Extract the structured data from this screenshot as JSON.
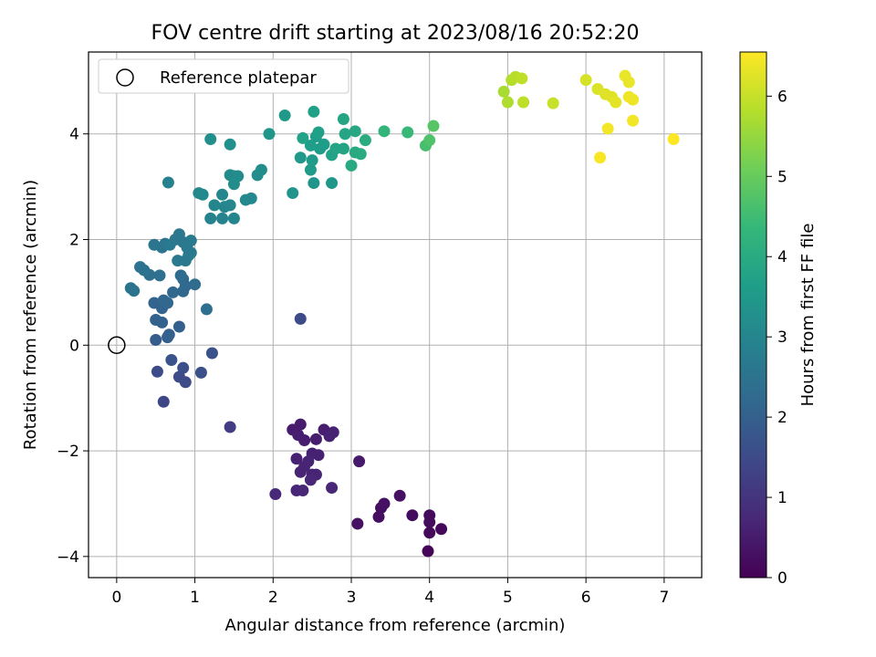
{
  "chart_data": {
    "type": "scatter",
    "title": "FOV centre drift starting at 2023/08/16 20:52:20",
    "xlabel": "Angular distance from reference (arcmin)",
    "ylabel": "Rotation from reference (arcmin)",
    "xlim": [
      -0.36,
      7.48
    ],
    "ylim": [
      -4.4,
      5.55
    ],
    "xticks": [
      0,
      1,
      2,
      3,
      4,
      5,
      6,
      7
    ],
    "yticks": [
      -4,
      -2,
      0,
      2,
      4
    ],
    "grid": true,
    "legend": {
      "placement": "top-left",
      "entries": [
        "Reference platepar"
      ]
    },
    "reference_point": {
      "x": 0,
      "y": 0
    },
    "colorbar": {
      "label": "Hours from first FF file",
      "range": [
        0,
        6.55
      ],
      "ticks": [
        0,
        1,
        2,
        3,
        4,
        5,
        6
      ],
      "colormap": "viridis",
      "stops": [
        "#440154",
        "#482878",
        "#3e4989",
        "#31688e",
        "#26828e",
        "#1f9e89",
        "#35b779",
        "#6ece58",
        "#b5de2b",
        "#fde725"
      ]
    },
    "points": [
      {
        "x": 3.98,
        "y": -3.9,
        "h": 0.1
      },
      {
        "x": 4.0,
        "y": -3.55,
        "h": 0.15
      },
      {
        "x": 4.15,
        "y": -3.48,
        "h": 0.15
      },
      {
        "x": 4.0,
        "y": -3.22,
        "h": 0.2
      },
      {
        "x": 3.78,
        "y": -3.22,
        "h": 0.2
      },
      {
        "x": 3.35,
        "y": -3.25,
        "h": 0.25
      },
      {
        "x": 3.38,
        "y": -3.08,
        "h": 0.25
      },
      {
        "x": 3.42,
        "y": -3.0,
        "h": 0.3
      },
      {
        "x": 3.62,
        "y": -2.85,
        "h": 0.3
      },
      {
        "x": 3.08,
        "y": -3.38,
        "h": 0.3
      },
      {
        "x": 4.0,
        "y": -3.35,
        "h": 0.2
      },
      {
        "x": 3.1,
        "y": -2.2,
        "h": 0.45
      },
      {
        "x": 2.35,
        "y": -1.5,
        "h": 0.5
      },
      {
        "x": 2.25,
        "y": -1.6,
        "h": 0.5
      },
      {
        "x": 2.32,
        "y": -1.7,
        "h": 0.55
      },
      {
        "x": 2.4,
        "y": -1.8,
        "h": 0.55
      },
      {
        "x": 2.55,
        "y": -1.78,
        "h": 0.55
      },
      {
        "x": 2.65,
        "y": -1.6,
        "h": 0.55
      },
      {
        "x": 2.72,
        "y": -1.72,
        "h": 0.6
      },
      {
        "x": 2.77,
        "y": -1.65,
        "h": 0.6
      },
      {
        "x": 2.3,
        "y": -2.15,
        "h": 0.6
      },
      {
        "x": 2.5,
        "y": -2.05,
        "h": 0.6
      },
      {
        "x": 2.58,
        "y": -2.08,
        "h": 0.6
      },
      {
        "x": 2.45,
        "y": -2.2,
        "h": 0.65
      },
      {
        "x": 2.35,
        "y": -2.4,
        "h": 0.65
      },
      {
        "x": 2.5,
        "y": -2.45,
        "h": 0.65
      },
      {
        "x": 2.55,
        "y": -2.45,
        "h": 0.65
      },
      {
        "x": 2.48,
        "y": -2.55,
        "h": 0.7
      },
      {
        "x": 2.3,
        "y": -2.75,
        "h": 0.7
      },
      {
        "x": 2.38,
        "y": -2.75,
        "h": 0.7
      },
      {
        "x": 2.75,
        "y": -2.7,
        "h": 0.7
      },
      {
        "x": 2.03,
        "y": -2.82,
        "h": 0.75
      },
      {
        "x": 2.4,
        "y": -2.3,
        "h": 0.65
      },
      {
        "x": 1.45,
        "y": -1.55,
        "h": 1.2
      },
      {
        "x": 0.6,
        "y": -1.07,
        "h": 1.4
      },
      {
        "x": 0.52,
        "y": -0.5,
        "h": 1.5
      },
      {
        "x": 0.8,
        "y": -0.6,
        "h": 1.5
      },
      {
        "x": 0.88,
        "y": -0.7,
        "h": 1.5
      },
      {
        "x": 0.85,
        "y": -0.43,
        "h": 1.6
      },
      {
        "x": 1.08,
        "y": -0.52,
        "h": 1.6
      },
      {
        "x": 1.22,
        "y": -0.15,
        "h": 1.65
      },
      {
        "x": 0.7,
        "y": -0.28,
        "h": 1.7
      },
      {
        "x": 2.35,
        "y": 0.5,
        "h": 1.5
      },
      {
        "x": 0.5,
        "y": 0.1,
        "h": 1.9
      },
      {
        "x": 0.65,
        "y": 0.15,
        "h": 1.95
      },
      {
        "x": 0.67,
        "y": 0.2,
        "h": 2.0
      },
      {
        "x": 0.8,
        "y": 0.35,
        "h": 2.0
      },
      {
        "x": 0.5,
        "y": 0.48,
        "h": 2.05
      },
      {
        "x": 0.58,
        "y": 0.43,
        "h": 2.05
      },
      {
        "x": 0.48,
        "y": 0.8,
        "h": 2.1
      },
      {
        "x": 0.58,
        "y": 0.7,
        "h": 2.1
      },
      {
        "x": 0.6,
        "y": 0.85,
        "h": 2.15
      },
      {
        "x": 0.65,
        "y": 0.8,
        "h": 2.15
      },
      {
        "x": 0.72,
        "y": 1.0,
        "h": 2.2
      },
      {
        "x": 0.85,
        "y": 1.02,
        "h": 2.2
      },
      {
        "x": 0.88,
        "y": 1.12,
        "h": 2.25
      },
      {
        "x": 0.85,
        "y": 1.25,
        "h": 2.25
      },
      {
        "x": 1.0,
        "y": 1.15,
        "h": 2.3
      },
      {
        "x": 0.82,
        "y": 1.32,
        "h": 2.3
      },
      {
        "x": 1.15,
        "y": 0.68,
        "h": 2.35
      },
      {
        "x": 0.55,
        "y": 1.32,
        "h": 2.4
      },
      {
        "x": 0.42,
        "y": 1.33,
        "h": 2.4
      },
      {
        "x": 0.35,
        "y": 1.42,
        "h": 2.45
      },
      {
        "x": 0.3,
        "y": 1.48,
        "h": 2.45
      },
      {
        "x": 0.18,
        "y": 1.08,
        "h": 2.5
      },
      {
        "x": 0.22,
        "y": 1.03,
        "h": 2.5
      },
      {
        "x": 0.48,
        "y": 1.9,
        "h": 2.55
      },
      {
        "x": 0.58,
        "y": 1.85,
        "h": 2.55
      },
      {
        "x": 0.62,
        "y": 1.92,
        "h": 2.55
      },
      {
        "x": 0.75,
        "y": 2.0,
        "h": 2.6
      },
      {
        "x": 0.8,
        "y": 2.1,
        "h": 2.6
      },
      {
        "x": 0.85,
        "y": 1.95,
        "h": 2.6
      },
      {
        "x": 0.9,
        "y": 1.85,
        "h": 2.65
      },
      {
        "x": 0.95,
        "y": 1.75,
        "h": 2.65
      },
      {
        "x": 0.78,
        "y": 1.6,
        "h": 2.65
      },
      {
        "x": 0.88,
        "y": 1.6,
        "h": 2.7
      },
      {
        "x": 0.95,
        "y": 1.98,
        "h": 2.7
      },
      {
        "x": 0.68,
        "y": 1.9,
        "h": 2.7
      },
      {
        "x": 0.92,
        "y": 1.7,
        "h": 2.7
      },
      {
        "x": 0.66,
        "y": 3.08,
        "h": 2.85
      },
      {
        "x": 1.2,
        "y": 2.4,
        "h": 2.95
      },
      {
        "x": 1.35,
        "y": 2.4,
        "h": 2.95
      },
      {
        "x": 1.5,
        "y": 2.4,
        "h": 3.0
      },
      {
        "x": 1.25,
        "y": 2.65,
        "h": 3.0
      },
      {
        "x": 1.38,
        "y": 2.62,
        "h": 3.0
      },
      {
        "x": 1.35,
        "y": 2.85,
        "h": 3.05
      },
      {
        "x": 1.45,
        "y": 2.65,
        "h": 3.05
      },
      {
        "x": 1.05,
        "y": 2.88,
        "h": 3.05
      },
      {
        "x": 1.1,
        "y": 2.85,
        "h": 3.1
      },
      {
        "x": 1.65,
        "y": 2.75,
        "h": 3.1
      },
      {
        "x": 1.72,
        "y": 2.78,
        "h": 3.1
      },
      {
        "x": 1.45,
        "y": 3.22,
        "h": 3.15
      },
      {
        "x": 1.5,
        "y": 3.2,
        "h": 3.15
      },
      {
        "x": 1.55,
        "y": 3.2,
        "h": 3.15
      },
      {
        "x": 1.5,
        "y": 3.05,
        "h": 3.2
      },
      {
        "x": 1.8,
        "y": 3.22,
        "h": 3.2
      },
      {
        "x": 1.85,
        "y": 3.32,
        "h": 3.2
      },
      {
        "x": 1.2,
        "y": 3.9,
        "h": 3.25
      },
      {
        "x": 1.45,
        "y": 3.8,
        "h": 3.3
      },
      {
        "x": 2.25,
        "y": 2.88,
        "h": 3.4
      },
      {
        "x": 2.52,
        "y": 3.07,
        "h": 3.4
      },
      {
        "x": 2.75,
        "y": 3.07,
        "h": 3.45
      },
      {
        "x": 1.95,
        "y": 4.0,
        "h": 3.45
      },
      {
        "x": 2.15,
        "y": 4.35,
        "h": 3.5
      },
      {
        "x": 2.35,
        "y": 3.55,
        "h": 3.5
      },
      {
        "x": 2.48,
        "y": 3.32,
        "h": 3.55
      },
      {
        "x": 2.5,
        "y": 3.5,
        "h": 3.55
      },
      {
        "x": 2.6,
        "y": 3.72,
        "h": 3.6
      },
      {
        "x": 2.65,
        "y": 3.8,
        "h": 3.6
      },
      {
        "x": 2.48,
        "y": 3.78,
        "h": 3.65
      },
      {
        "x": 2.55,
        "y": 3.95,
        "h": 3.65
      },
      {
        "x": 2.58,
        "y": 4.03,
        "h": 3.7
      },
      {
        "x": 2.52,
        "y": 4.42,
        "h": 3.7
      },
      {
        "x": 2.38,
        "y": 3.92,
        "h": 3.75
      },
      {
        "x": 2.75,
        "y": 3.6,
        "h": 3.75
      },
      {
        "x": 2.8,
        "y": 3.72,
        "h": 3.8
      },
      {
        "x": 2.9,
        "y": 3.72,
        "h": 3.8
      },
      {
        "x": 2.92,
        "y": 4.0,
        "h": 3.85
      },
      {
        "x": 2.9,
        "y": 4.28,
        "h": 3.85
      },
      {
        "x": 3.05,
        "y": 4.05,
        "h": 3.9
      },
      {
        "x": 3.0,
        "y": 3.4,
        "h": 3.95
      },
      {
        "x": 3.05,
        "y": 3.65,
        "h": 3.95
      },
      {
        "x": 3.12,
        "y": 3.62,
        "h": 4.0
      },
      {
        "x": 3.18,
        "y": 3.88,
        "h": 4.05
      },
      {
        "x": 3.42,
        "y": 4.05,
        "h": 4.3
      },
      {
        "x": 3.72,
        "y": 4.03,
        "h": 4.4
      },
      {
        "x": 3.95,
        "y": 3.78,
        "h": 4.6
      },
      {
        "x": 4.0,
        "y": 3.88,
        "h": 4.7
      },
      {
        "x": 4.05,
        "y": 4.15,
        "h": 4.8
      },
      {
        "x": 4.95,
        "y": 4.8,
        "h": 5.7
      },
      {
        "x": 5.0,
        "y": 4.6,
        "h": 5.75
      },
      {
        "x": 5.05,
        "y": 5.02,
        "h": 5.8
      },
      {
        "x": 5.1,
        "y": 5.08,
        "h": 5.85
      },
      {
        "x": 5.18,
        "y": 5.05,
        "h": 5.9
      },
      {
        "x": 5.2,
        "y": 4.6,
        "h": 5.9
      },
      {
        "x": 5.58,
        "y": 4.58,
        "h": 6.0
      },
      {
        "x": 6.0,
        "y": 5.02,
        "h": 6.15
      },
      {
        "x": 6.15,
        "y": 4.85,
        "h": 6.2
      },
      {
        "x": 6.25,
        "y": 4.75,
        "h": 6.25
      },
      {
        "x": 6.33,
        "y": 4.7,
        "h": 6.25
      },
      {
        "x": 6.38,
        "y": 4.6,
        "h": 6.3
      },
      {
        "x": 6.5,
        "y": 5.1,
        "h": 6.35
      },
      {
        "x": 6.55,
        "y": 4.98,
        "h": 6.35
      },
      {
        "x": 6.55,
        "y": 4.7,
        "h": 6.4
      },
      {
        "x": 6.6,
        "y": 4.65,
        "h": 6.4
      },
      {
        "x": 6.6,
        "y": 4.25,
        "h": 6.45
      },
      {
        "x": 6.28,
        "y": 4.1,
        "h": 6.45
      },
      {
        "x": 6.18,
        "y": 3.55,
        "h": 6.5
      },
      {
        "x": 7.12,
        "y": 3.9,
        "h": 6.55
      }
    ]
  }
}
